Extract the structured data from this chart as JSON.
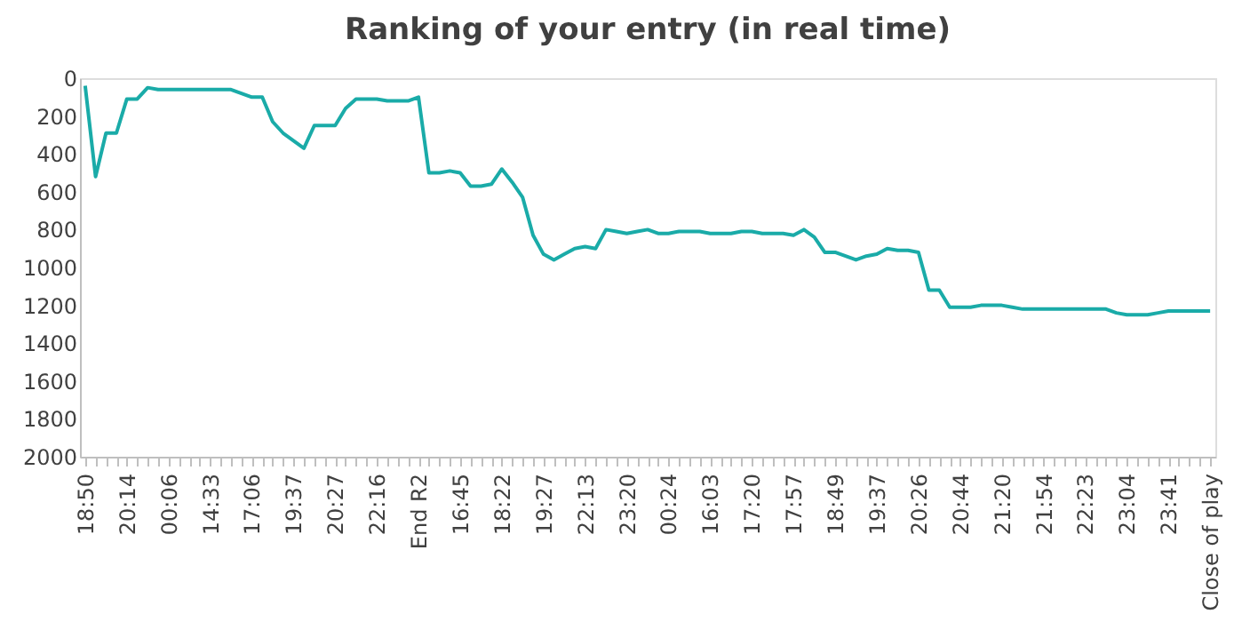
{
  "chart_data": {
    "type": "line",
    "title": "Ranking of your entry (in real time)",
    "categories": [
      "18:50",
      null,
      null,
      null,
      "20:14",
      null,
      null,
      null,
      "00:06",
      null,
      null,
      null,
      "14:33",
      null,
      null,
      null,
      "17:06",
      null,
      null,
      null,
      "19:37",
      null,
      null,
      null,
      "20:27",
      null,
      null,
      null,
      "22:16",
      null,
      null,
      null,
      "End R2",
      null,
      null,
      null,
      "16:45",
      null,
      null,
      null,
      "18:22",
      null,
      null,
      null,
      "19:27",
      null,
      null,
      null,
      "22:13",
      null,
      null,
      null,
      "23:20",
      null,
      null,
      null,
      "00:24",
      null,
      null,
      null,
      "16:03",
      null,
      null,
      null,
      "17:20",
      null,
      null,
      null,
      "17:57",
      null,
      null,
      null,
      "18:49",
      null,
      null,
      null,
      "19:37",
      null,
      null,
      null,
      "20:26",
      null,
      null,
      null,
      "20:44",
      null,
      null,
      null,
      "21:20",
      null,
      null,
      null,
      "21:54",
      null,
      null,
      null,
      "22:23",
      null,
      null,
      null,
      "23:04",
      null,
      null,
      null,
      "23:41",
      null,
      null,
      null,
      "Close of play"
    ],
    "series": [
      {
        "color": "#1aaba8",
        "values": [
          40,
          520,
          290,
          290,
          110,
          110,
          50,
          60,
          60,
          60,
          60,
          60,
          60,
          60,
          60,
          80,
          100,
          100,
          230,
          290,
          330,
          370,
          250,
          250,
          250,
          160,
          110,
          110,
          110,
          120,
          120,
          120,
          100,
          500,
          500,
          490,
          500,
          570,
          570,
          560,
          480,
          550,
          630,
          830,
          930,
          960,
          930,
          900,
          890,
          900,
          800,
          810,
          820,
          810,
          800,
          820,
          820,
          810,
          810,
          810,
          820,
          820,
          820,
          810,
          810,
          820,
          820,
          820,
          830,
          800,
          840,
          920,
          920,
          940,
          960,
          940,
          930,
          900,
          910,
          910,
          920,
          1120,
          1120,
          1210,
          1210,
          1210,
          1200,
          1200,
          1200,
          1210,
          1220,
          1220,
          1220,
          1220,
          1220,
          1220,
          1220,
          1220,
          1220,
          1240,
          1250,
          1250,
          1250,
          1240,
          1230,
          1230,
          1230,
          1230,
          1230
        ]
      }
    ],
    "ylim": [
      2000,
      0
    ],
    "yticks": [
      0,
      200,
      400,
      600,
      800,
      1000,
      1200,
      1400,
      1600,
      1800,
      2000
    ],
    "grid": false,
    "legend": false,
    "marker": "none",
    "line_style": "solid"
  }
}
